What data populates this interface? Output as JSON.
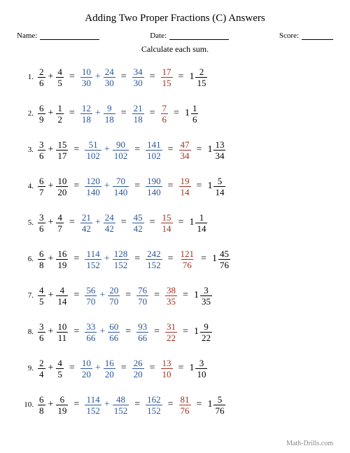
{
  "title": "Adding Two Proper Fractions (C) Answers",
  "header": {
    "name_label": "Name:",
    "date_label": "Date:",
    "score_label": "Score:"
  },
  "instruction": "Calculate each sum.",
  "colors": {
    "black": "#000000",
    "blue": "#2a5599",
    "red": "#a03020",
    "footer": "#888888",
    "background": "#ffffff"
  },
  "problems": [
    {
      "n": "1.",
      "a": {
        "n": "2",
        "d": "6"
      },
      "b": {
        "n": "4",
        "d": "5"
      },
      "c": {
        "n": "10",
        "d": "30"
      },
      "d": {
        "n": "24",
        "d": "30"
      },
      "sum": {
        "n": "34",
        "d": "30"
      },
      "red": {
        "n": "17",
        "d": "15"
      },
      "mixed": {
        "w": "1",
        "n": "2",
        "d": "15"
      }
    },
    {
      "n": "2.",
      "a": {
        "n": "6",
        "d": "9"
      },
      "b": {
        "n": "1",
        "d": "2"
      },
      "c": {
        "n": "12",
        "d": "18"
      },
      "d": {
        "n": "9",
        "d": "18"
      },
      "sum": {
        "n": "21",
        "d": "18"
      },
      "red": {
        "n": "7",
        "d": "6"
      },
      "mixed": {
        "w": "1",
        "n": "1",
        "d": "6"
      }
    },
    {
      "n": "3.",
      "a": {
        "n": "3",
        "d": "6"
      },
      "b": {
        "n": "15",
        "d": "17"
      },
      "c": {
        "n": "51",
        "d": "102"
      },
      "d": {
        "n": "90",
        "d": "102"
      },
      "sum": {
        "n": "141",
        "d": "102"
      },
      "red": {
        "n": "47",
        "d": "34"
      },
      "mixed": {
        "w": "1",
        "n": "13",
        "d": "34"
      }
    },
    {
      "n": "4.",
      "a": {
        "n": "6",
        "d": "7"
      },
      "b": {
        "n": "10",
        "d": "20"
      },
      "c": {
        "n": "120",
        "d": "140"
      },
      "d": {
        "n": "70",
        "d": "140"
      },
      "sum": {
        "n": "190",
        "d": "140"
      },
      "red": {
        "n": "19",
        "d": "14"
      },
      "mixed": {
        "w": "1",
        "n": "5",
        "d": "14"
      }
    },
    {
      "n": "5.",
      "a": {
        "n": "3",
        "d": "6"
      },
      "b": {
        "n": "4",
        "d": "7"
      },
      "c": {
        "n": "21",
        "d": "42"
      },
      "d": {
        "n": "24",
        "d": "42"
      },
      "sum": {
        "n": "45",
        "d": "42"
      },
      "red": {
        "n": "15",
        "d": "14"
      },
      "mixed": {
        "w": "1",
        "n": "1",
        "d": "14"
      }
    },
    {
      "n": "6.",
      "a": {
        "n": "6",
        "d": "8"
      },
      "b": {
        "n": "16",
        "d": "19"
      },
      "c": {
        "n": "114",
        "d": "152"
      },
      "d": {
        "n": "128",
        "d": "152"
      },
      "sum": {
        "n": "242",
        "d": "152"
      },
      "red": {
        "n": "121",
        "d": "76"
      },
      "mixed": {
        "w": "1",
        "n": "45",
        "d": "76"
      }
    },
    {
      "n": "7.",
      "a": {
        "n": "4",
        "d": "5"
      },
      "b": {
        "n": "4",
        "d": "14"
      },
      "c": {
        "n": "56",
        "d": "70"
      },
      "d": {
        "n": "20",
        "d": "70"
      },
      "sum": {
        "n": "76",
        "d": "70"
      },
      "red": {
        "n": "38",
        "d": "35"
      },
      "mixed": {
        "w": "1",
        "n": "3",
        "d": "35"
      }
    },
    {
      "n": "8.",
      "a": {
        "n": "3",
        "d": "6"
      },
      "b": {
        "n": "10",
        "d": "11"
      },
      "c": {
        "n": "33",
        "d": "66"
      },
      "d": {
        "n": "60",
        "d": "66"
      },
      "sum": {
        "n": "93",
        "d": "66"
      },
      "red": {
        "n": "31",
        "d": "22"
      },
      "mixed": {
        "w": "1",
        "n": "9",
        "d": "22"
      }
    },
    {
      "n": "9.",
      "a": {
        "n": "2",
        "d": "4"
      },
      "b": {
        "n": "4",
        "d": "5"
      },
      "c": {
        "n": "10",
        "d": "20"
      },
      "d": {
        "n": "16",
        "d": "20"
      },
      "sum": {
        "n": "26",
        "d": "20"
      },
      "red": {
        "n": "13",
        "d": "10"
      },
      "mixed": {
        "w": "1",
        "n": "3",
        "d": "10"
      }
    },
    {
      "n": "10.",
      "a": {
        "n": "6",
        "d": "8"
      },
      "b": {
        "n": "6",
        "d": "19"
      },
      "c": {
        "n": "114",
        "d": "152"
      },
      "d": {
        "n": "48",
        "d": "152"
      },
      "sum": {
        "n": "162",
        "d": "152"
      },
      "red": {
        "n": "81",
        "d": "76"
      },
      "mixed": {
        "w": "1",
        "n": "5",
        "d": "76"
      }
    }
  ],
  "footer": "Math-Drills.com"
}
